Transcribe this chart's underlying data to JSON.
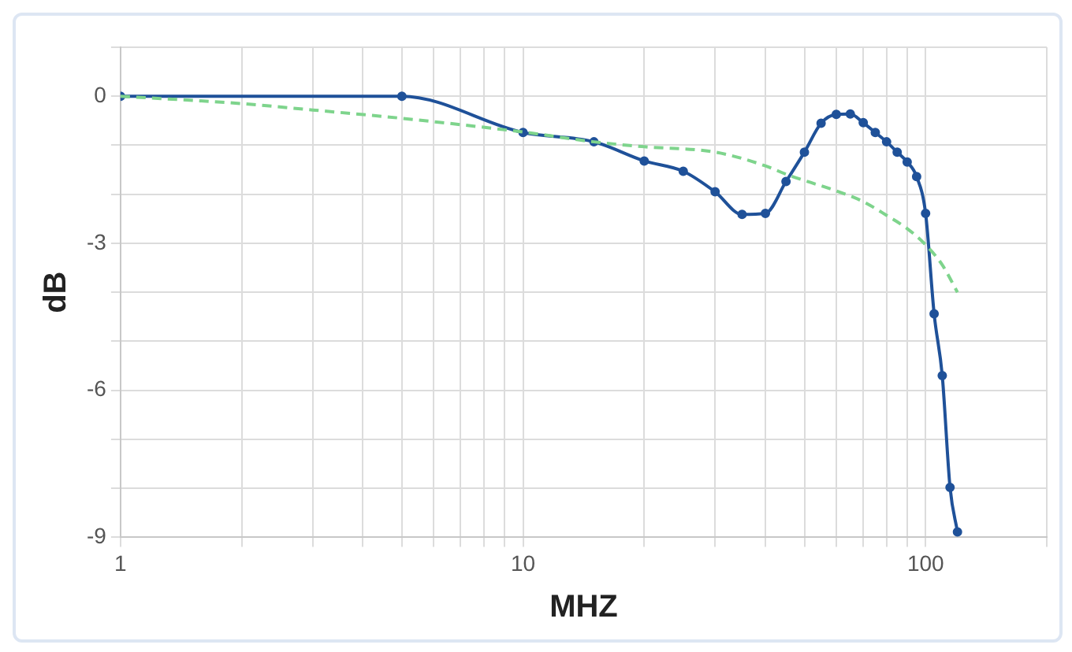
{
  "chart_data": {
    "type": "line",
    "xlabel": "MHZ",
    "ylabel": "dB",
    "log": "x",
    "grid": true,
    "legend": false,
    "xlim": [
      1,
      200
    ],
    "ylim": [
      -9,
      1
    ],
    "xticks": [
      1,
      {
        "value": 2,
        "label": null
      },
      {
        "value": 3,
        "label": null
      },
      {
        "value": 4,
        "label": null
      },
      {
        "value": 5,
        "label": null
      },
      {
        "value": 6,
        "label": null
      },
      {
        "value": 7,
        "label": null
      },
      {
        "value": 8,
        "label": null
      },
      {
        "value": 9,
        "label": null
      },
      10,
      {
        "value": 20,
        "label": null
      },
      {
        "value": 30,
        "label": null
      },
      {
        "value": 40,
        "label": null
      },
      {
        "value": 50,
        "label": null
      },
      {
        "value": 60,
        "label": null
      },
      {
        "value": 70,
        "label": null
      },
      {
        "value": 80,
        "label": null
      },
      {
        "value": 90,
        "label": null
      },
      100,
      {
        "value": 200,
        "label": null
      }
    ],
    "yticks": [
      -9,
      {
        "value": -8,
        "label": null
      },
      {
        "value": -7,
        "label": null
      },
      -6,
      {
        "value": -5,
        "label": null
      },
      {
        "value": -4,
        "label": null
      },
      -3,
      {
        "value": -2,
        "label": null
      },
      {
        "value": -1,
        "label": null
      },
      0,
      {
        "value": 1,
        "label": null
      }
    ],
    "series": [
      {
        "color": "#7ed48c",
        "line_style": "dashed",
        "marker": "none",
        "x": [
          1,
          2,
          3,
          5,
          10,
          15,
          20,
          30,
          40,
          45,
          50,
          60,
          70,
          80,
          90,
          100,
          110,
          120
        ],
        "values": [
          0,
          -0.15,
          -0.28,
          -0.45,
          -0.73,
          -0.93,
          -1.03,
          -1.14,
          -1.42,
          -1.59,
          -1.72,
          -1.93,
          -2.15,
          -2.43,
          -2.7,
          -3.03,
          -3.44,
          -4.0
        ]
      },
      {
        "color": "#1f5199",
        "line_style": "solid",
        "marker": "circle",
        "x": [
          1,
          5,
          10,
          15,
          20,
          25,
          30,
          35,
          40,
          45,
          50,
          55,
          60,
          65,
          70,
          75,
          80,
          85,
          90,
          95,
          100,
          105,
          110,
          115,
          120
        ],
        "values": [
          0,
          0,
          -0.74,
          -0.93,
          -1.32,
          -1.53,
          -1.95,
          -2.41,
          -2.39,
          -1.74,
          -1.14,
          -0.55,
          -0.37,
          -0.36,
          -0.54,
          -0.74,
          -0.93,
          -1.14,
          -1.34,
          -1.64,
          -2.39,
          -4.44,
          -5.7,
          -7.98,
          -8.89
        ]
      }
    ]
  }
}
